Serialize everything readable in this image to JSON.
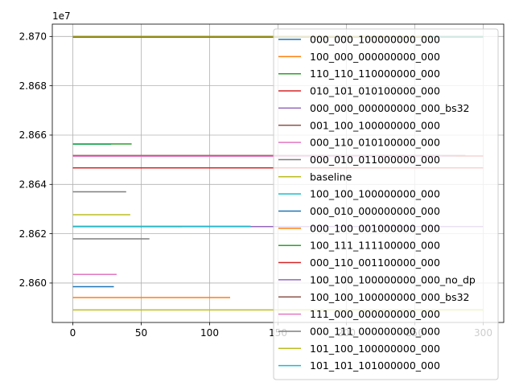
{
  "chart_data": {
    "type": "line",
    "title": "",
    "xlabel": "",
    "ylabel": "",
    "offset_text": "1e7",
    "xlim": [
      -15,
      315
    ],
    "ylim": [
      28584000,
      28705000
    ],
    "x_ticks": [
      0,
      50,
      100,
      150,
      200,
      250,
      300
    ],
    "x_tick_labels": [
      "0",
      "50",
      "100",
      "150",
      "200",
      "250",
      "300"
    ],
    "y_ticks": [
      28600000,
      28620000,
      28640000,
      28660000,
      28680000,
      28700000
    ],
    "y_tick_labels": [
      "2.860",
      "2.862",
      "2.864",
      "2.866",
      "2.868",
      "2.870"
    ],
    "grid": true,
    "legend_position": "right",
    "series": [
      {
        "name": "000_000_100000000_000",
        "color": "#1f77b4",
        "x": [
          0,
          300
        ],
        "y": [
          28700000,
          28700000
        ]
      },
      {
        "name": "100_000_000000000_000",
        "color": "#ff7f0e",
        "x": [
          0,
          260
        ],
        "y": [
          28700000,
          28700000
        ]
      },
      {
        "name": "110_110_110000000_000",
        "color": "#2ca02c",
        "x": [
          0,
          300
        ],
        "y": [
          28699700,
          28699700
        ]
      },
      {
        "name": "010_101_010100000_000",
        "color": "#d62728",
        "x": [
          0,
          300
        ],
        "y": [
          28651500,
          28651500
        ]
      },
      {
        "name": "000_000_000000000_000_bs32",
        "color": "#9467bd",
        "x": [
          0,
          280
        ],
        "y": [
          28651600,
          28651600
        ]
      },
      {
        "name": "001_100_100000000_000",
        "color": "#8c564b",
        "x": [
          0,
          287
        ],
        "y": [
          28651700,
          28651700
        ]
      },
      {
        "name": "000_110_010100000_000",
        "color": "#e377c2",
        "x": [
          0,
          270
        ],
        "y": [
          28651400,
          28651400
        ]
      },
      {
        "name": "000_010_011000000_000",
        "color": "#7f7f7f",
        "x": [
          0,
          39
        ],
        "y": [
          28637000,
          28637000
        ]
      },
      {
        "name": "baseline",
        "color": "#bcbd22",
        "x": [
          0,
          42
        ],
        "y": [
          28627700,
          28627700
        ]
      },
      {
        "name": "100_100_100000000_000",
        "color": "#17becf",
        "x": [
          0,
          28
        ],
        "y": [
          28656300,
          28656300
        ]
      },
      {
        "name": "000_010_000000000_000",
        "color": "#1f77b4",
        "x": [
          0,
          30
        ],
        "y": [
          28598500,
          28598500
        ]
      },
      {
        "name": "000_100_001000000_000",
        "color": "#ff7f0e",
        "x": [
          0,
          115
        ],
        "y": [
          28594100,
          28594100
        ]
      },
      {
        "name": "100_111_111100000_000",
        "color": "#2ca02c",
        "x": [
          0,
          43
        ],
        "y": [
          28656400,
          28656400
        ]
      },
      {
        "name": "000_110_001100000_000",
        "color": "#d62728",
        "x": [
          0,
          300
        ],
        "y": [
          28646700,
          28646700
        ]
      },
      {
        "name": "100_100_100000000_000_no_dp",
        "color": "#9467bd",
        "x": [
          0,
          300
        ],
        "y": [
          28622900,
          28622900
        ]
      },
      {
        "name": "100_100_100000000_000_bs32",
        "color": "#8c564b",
        "x": [
          0,
          80
        ],
        "y": [
          28622900,
          28622900
        ]
      },
      {
        "name": "111_000_000000000_000",
        "color": "#e377c2",
        "x": [
          0,
          32
        ],
        "y": [
          28603500,
          28603500
        ]
      },
      {
        "name": "000_111_000000000_000",
        "color": "#7f7f7f",
        "x": [
          0,
          56
        ],
        "y": [
          28617900,
          28617900
        ]
      },
      {
        "name": "101_100_100000000_000",
        "color": "#bcbd22",
        "x": [
          0,
          300
        ],
        "y": [
          28589100,
          28589100
        ]
      },
      {
        "name": "101_101_101000000_000",
        "color": "#17becf",
        "x": [
          0,
          130
        ],
        "y": [
          28623000,
          28623000
        ]
      }
    ]
  }
}
